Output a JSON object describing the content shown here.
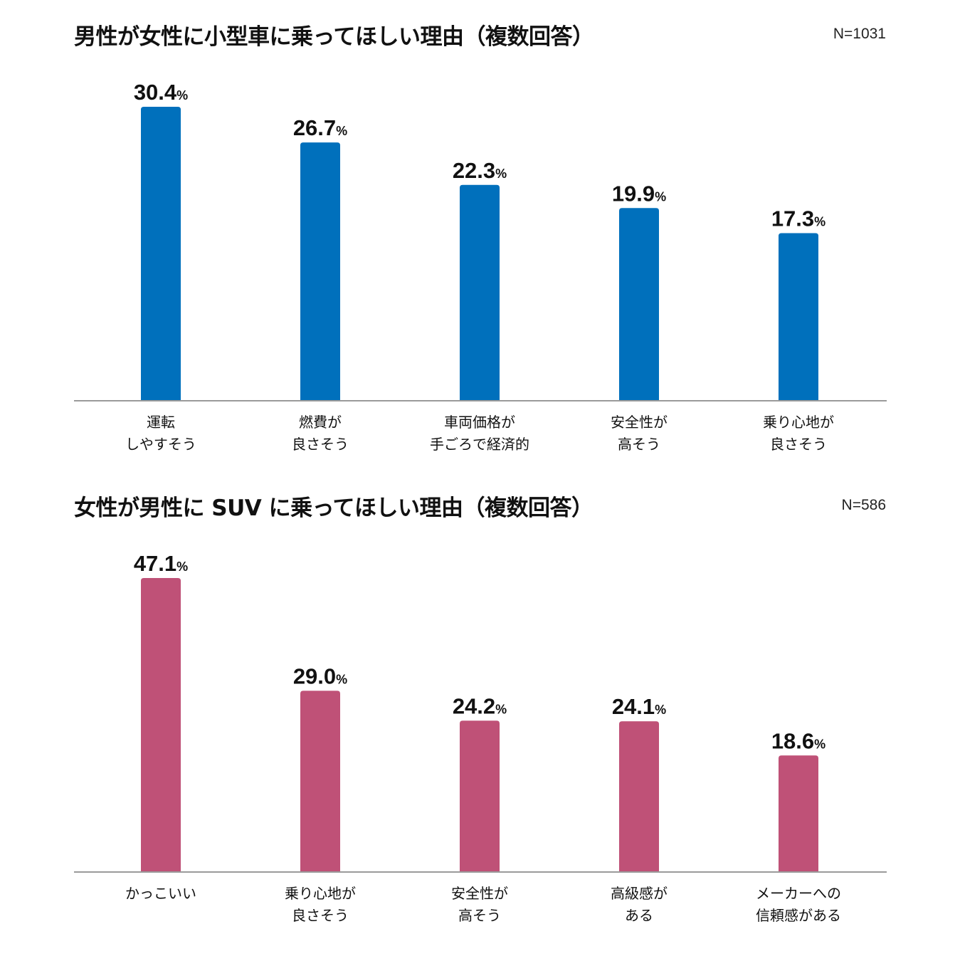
{
  "chart_data": [
    {
      "type": "bar",
      "title": "男性が女性に小型車に乗ってほしい理由（複数回答）",
      "sample": "N=1031",
      "unit": "%",
      "categories": [
        [
          "運転",
          "しやすそう"
        ],
        [
          "燃費が",
          "良さそう"
        ],
        [
          "車両価格が",
          "手ごろで経済的"
        ],
        [
          "安全性が",
          "高そう"
        ],
        [
          "乗り心地が",
          "良さそう"
        ]
      ],
      "values": [
        30.4,
        26.7,
        22.3,
        19.9,
        17.3
      ],
      "value_labels": [
        "30.4",
        "26.7",
        "22.3",
        "19.9",
        "17.3"
      ],
      "ylim": [
        0,
        30.4
      ],
      "color": "#0070bc",
      "axis_color": "#9a9a9a"
    },
    {
      "type": "bar",
      "title": "女性が男性に SUV に乗ってほしい理由（複数回答）",
      "sample": "N=586",
      "unit": "%",
      "categories": [
        [
          "かっこいい"
        ],
        [
          "乗り心地が",
          "良さそう"
        ],
        [
          "安全性が",
          "高そう"
        ],
        [
          "高級感が",
          "ある"
        ],
        [
          "メーカーへの",
          "信頼感がある"
        ]
      ],
      "values": [
        47.1,
        29.0,
        24.2,
        24.1,
        18.6
      ],
      "value_labels": [
        "47.1",
        "29.0",
        "24.2",
        "24.1",
        "18.6"
      ],
      "ylim": [
        0,
        47.1
      ],
      "color": "#bf5177",
      "axis_color": "#9a9a9a"
    }
  ]
}
